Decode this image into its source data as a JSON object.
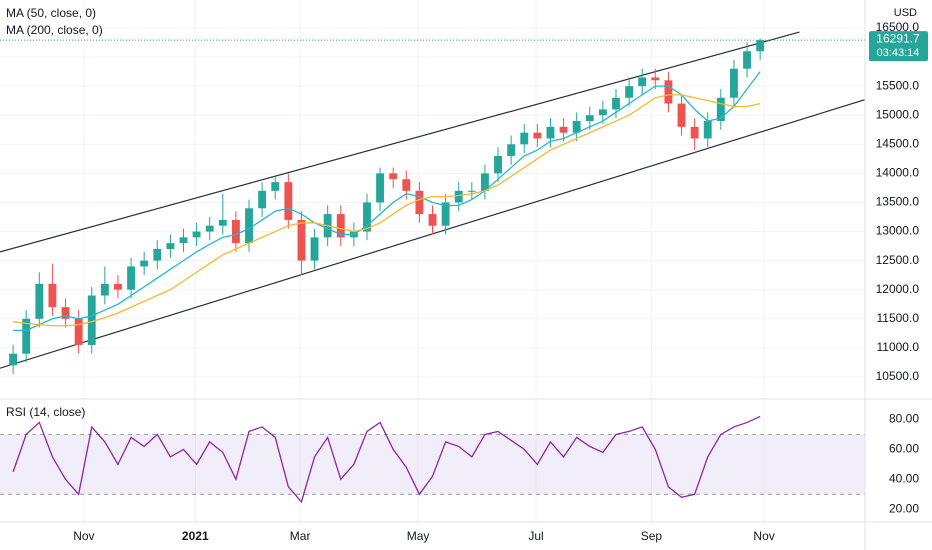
{
  "chart_data": [
    {
      "type": "candlestick",
      "currency": "USD",
      "countdown": "03:43:14",
      "x": [
        0,
        1,
        2,
        3,
        4,
        5,
        6,
        7,
        8,
        9,
        10,
        11,
        12,
        13,
        14,
        15,
        16,
        17,
        18,
        19,
        20,
        21,
        22,
        23,
        24,
        25,
        26,
        27,
        28,
        29,
        30,
        31,
        32,
        33,
        34,
        35,
        36,
        37,
        38,
        39,
        40,
        41,
        42,
        43,
        44,
        45,
        46,
        47,
        48,
        49,
        50,
        51,
        52,
        53,
        54,
        55,
        56,
        57
      ],
      "open": [
        10700,
        10900,
        11500,
        12100,
        11700,
        11500,
        11050,
        11900,
        12100,
        12000,
        12400,
        12500,
        12700,
        12800,
        12900,
        13000,
        13100,
        13200,
        12800,
        13400,
        13700,
        13850,
        13200,
        12500,
        12900,
        13300,
        12900,
        13000,
        13500,
        14000,
        13900,
        13700,
        13300,
        13100,
        13500,
        13700,
        13700,
        14000,
        14300,
        14500,
        14700,
        14600,
        14800,
        14700,
        14900,
        15000,
        15100,
        15300,
        15500,
        15650,
        15600,
        15200,
        14800,
        14600,
        14900,
        15300,
        15800,
        16100
      ],
      "high": [
        11050,
        11650,
        12300,
        12450,
        11850,
        11650,
        12050,
        12400,
        12250,
        12550,
        12650,
        12850,
        12950,
        13050,
        13150,
        13250,
        13650,
        13350,
        13550,
        13850,
        13950,
        14000,
        13350,
        13050,
        13450,
        13450,
        13150,
        13650,
        14100,
        14100,
        14050,
        13850,
        13450,
        13650,
        13850,
        13850,
        14150,
        14450,
        14650,
        14850,
        14850,
        14950,
        14950,
        15050,
        15150,
        15250,
        15450,
        15650,
        15800,
        15800,
        15750,
        15350,
        14950,
        15050,
        15450,
        15950,
        16250,
        16320
      ],
      "low": [
        10550,
        10750,
        11350,
        11550,
        11350,
        10900,
        10900,
        11750,
        11850,
        11850,
        12250,
        12350,
        12550,
        12650,
        12750,
        12850,
        12950,
        12650,
        12650,
        13250,
        13550,
        13050,
        12250,
        12350,
        12750,
        12750,
        12750,
        12850,
        13350,
        13750,
        13550,
        13150,
        12950,
        12950,
        13350,
        13550,
        13550,
        13850,
        14150,
        14350,
        14450,
        14450,
        14550,
        14550,
        14750,
        14850,
        14950,
        15150,
        15350,
        15450,
        15050,
        14650,
        14400,
        14450,
        14750,
        15150,
        15650,
        15950
      ],
      "close": [
        10900,
        11500,
        12100,
        11700,
        11500,
        11050,
        11900,
        12100,
        12000,
        12400,
        12500,
        12700,
        12800,
        12900,
        13000,
        13100,
        13200,
        12800,
        13400,
        13700,
        13850,
        13200,
        12500,
        12900,
        13300,
        12900,
        13000,
        13500,
        14000,
        13900,
        13700,
        13300,
        13100,
        13500,
        13700,
        13700,
        14000,
        14300,
        14500,
        14700,
        14600,
        14800,
        14700,
        14900,
        15000,
        15100,
        15300,
        15500,
        15650,
        15600,
        15200,
        14800,
        14600,
        14900,
        15300,
        15800,
        16100,
        16291.7
      ],
      "up_color": "#26a69a",
      "down_color": "#ef5350",
      "series": [
        {
          "name": "MA (50, close, 0)",
          "color": "#22b8cf",
          "values": [
            11300,
            11300,
            11400,
            11500,
            11550,
            11500,
            11550,
            11650,
            11750,
            11900,
            12050,
            12200,
            12350,
            12500,
            12650,
            12780,
            12900,
            12950,
            13050,
            13200,
            13350,
            13400,
            13300,
            13150,
            13050,
            12950,
            12950,
            13100,
            13300,
            13500,
            13650,
            13600,
            13500,
            13450,
            13450,
            13550,
            13700,
            13900,
            14100,
            14300,
            14400,
            14550,
            14600,
            14700,
            14800,
            14900,
            15050,
            15200,
            15350,
            15500,
            15500,
            15350,
            15100,
            14900,
            14950,
            15150,
            15450,
            15750
          ]
        },
        {
          "name": "MA (200, close, 0)",
          "color": "#f5b82e",
          "values": [
            11450,
            11420,
            11400,
            11380,
            11380,
            11400,
            11450,
            11520,
            11600,
            11700,
            11800,
            11900,
            12000,
            12150,
            12300,
            12450,
            12600,
            12700,
            12800,
            12900,
            13000,
            13100,
            13150,
            13150,
            13100,
            13050,
            13000,
            13050,
            13150,
            13300,
            13450,
            13550,
            13600,
            13600,
            13620,
            13650,
            13700,
            13800,
            13950,
            14100,
            14250,
            14400,
            14500,
            14600,
            14700,
            14800,
            14900,
            15000,
            15150,
            15300,
            15350,
            15350,
            15300,
            15250,
            15200,
            15150,
            15150,
            15200
          ]
        }
      ],
      "channels": [
        {
          "x": [
            -1,
            60
          ],
          "y": [
            12650,
            16430
          ]
        },
        {
          "x": [
            -1,
            65.4
          ],
          "y": [
            10650,
            15296
          ]
        }
      ],
      "xlim": [
        -1,
        65
      ],
      "xticks": [
        {
          "value": 5.4,
          "label": "Nov"
        },
        {
          "value": 13.9,
          "label": "2021"
        },
        {
          "value": 21.9,
          "label": "Mar"
        },
        {
          "value": 30.9,
          "label": "May"
        },
        {
          "value": 39.9,
          "label": "Jul"
        },
        {
          "value": 48.7,
          "label": "Sep"
        },
        {
          "value": 57.3,
          "label": "Nov"
        }
      ],
      "ylim": [
        10138,
        16981
      ],
      "yticks": [
        {
          "value": 10500,
          "label": "10500.0"
        },
        {
          "value": 11000,
          "label": "11000.0"
        },
        {
          "value": 11500,
          "label": "11500.0"
        },
        {
          "value": 12000,
          "label": "12000.0"
        },
        {
          "value": 12500,
          "label": "12500.0"
        },
        {
          "value": 13000,
          "label": "13000.0"
        },
        {
          "value": 13500,
          "label": "13500.0"
        },
        {
          "value": 14000,
          "label": "14000.0"
        },
        {
          "value": 14500,
          "label": "14500.0"
        },
        {
          "value": 15000,
          "label": "15000.0"
        },
        {
          "value": 15500,
          "label": "15500.0"
        },
        {
          "value": 16000,
          "label": "16000.0"
        },
        {
          "value": 16500,
          "label": "16500.0"
        }
      ],
      "grid": true
    },
    {
      "type": "line",
      "series": [
        {
          "name": "RSI (14, close)",
          "color": "#8e24aa",
          "values": [
            45,
            70,
            78,
            55,
            40,
            30,
            75,
            65,
            50,
            68,
            62,
            70,
            55,
            60,
            50,
            65,
            58,
            40,
            72,
            75,
            68,
            35,
            25,
            55,
            68,
            40,
            50,
            72,
            78,
            60,
            48,
            30,
            42,
            65,
            62,
            55,
            70,
            72,
            66,
            60,
            50,
            65,
            55,
            68,
            62,
            58,
            70,
            72,
            75,
            60,
            35,
            28,
            30,
            55,
            70,
            75,
            78,
            82
          ]
        }
      ],
      "bands": [
        30,
        70
      ],
      "band_color": "#7e57c2",
      "ylim": [
        11.5,
        93
      ],
      "yticks": [
        {
          "value": 20,
          "label": "20.00"
        },
        {
          "value": 40,
          "label": "40.00"
        },
        {
          "value": 60,
          "label": "60.00"
        },
        {
          "value": 80,
          "label": "80.00"
        }
      ]
    }
  ]
}
